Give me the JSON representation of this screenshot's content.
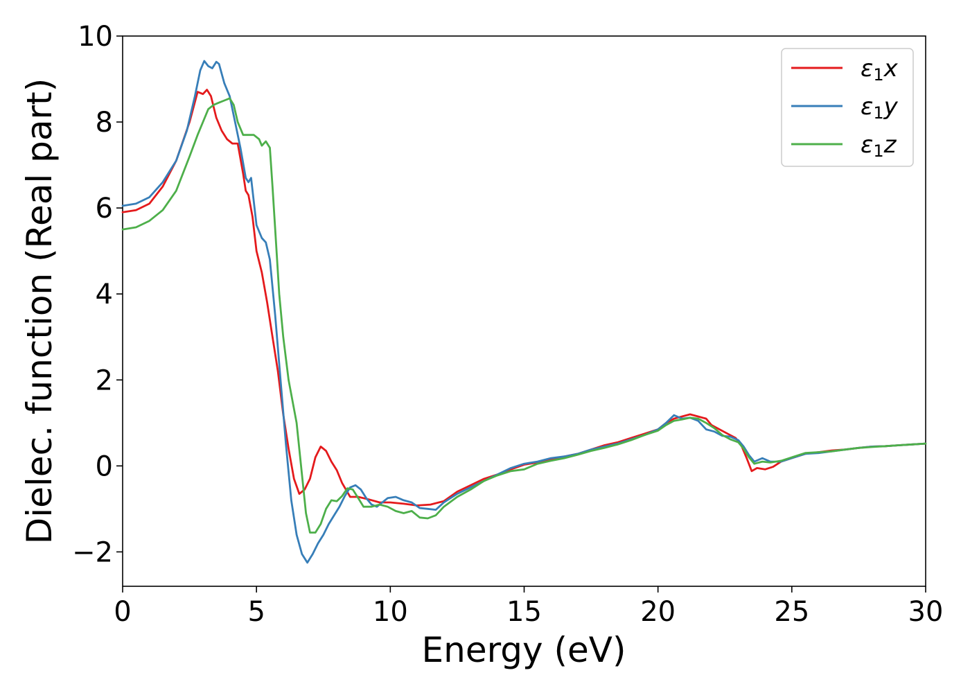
{
  "chart_data": {
    "type": "line",
    "title": "",
    "xlabel": "Energy (eV)",
    "ylabel": "Dielec. function (Real part)",
    "xlim": [
      0,
      30
    ],
    "ylim": [
      -2.8,
      10
    ],
    "xticks": [
      0,
      5,
      10,
      15,
      20,
      25,
      30
    ],
    "yticks": [
      -2,
      0,
      2,
      4,
      6,
      8,
      10
    ],
    "xtick_labels": [
      "0",
      "5",
      "10",
      "15",
      "20",
      "25",
      "30"
    ],
    "ytick_labels": [
      "−2",
      "0",
      "2",
      "4",
      "6",
      "8",
      "10"
    ],
    "grid": false,
    "legend_position": "top-right",
    "series": [
      {
        "name": "ε1x",
        "legend": {
          "base": "ε",
          "sub": "1",
          "suffix": "x"
        },
        "color": "#e41a1c",
        "points": [
          [
            0,
            5.9
          ],
          [
            0.5,
            5.95
          ],
          [
            1,
            6.1
          ],
          [
            1.5,
            6.5
          ],
          [
            2,
            7.1
          ],
          [
            2.5,
            8.0
          ],
          [
            2.8,
            8.7
          ],
          [
            3.0,
            8.65
          ],
          [
            3.15,
            8.75
          ],
          [
            3.3,
            8.6
          ],
          [
            3.5,
            8.1
          ],
          [
            3.7,
            7.8
          ],
          [
            3.9,
            7.6
          ],
          [
            4.1,
            7.5
          ],
          [
            4.3,
            7.5
          ],
          [
            4.5,
            6.8
          ],
          [
            4.6,
            6.4
          ],
          [
            4.7,
            6.3
          ],
          [
            4.85,
            5.8
          ],
          [
            5.0,
            5.0
          ],
          [
            5.2,
            4.5
          ],
          [
            5.4,
            3.8
          ],
          [
            5.6,
            3.0
          ],
          [
            5.8,
            2.2
          ],
          [
            6.0,
            1.2
          ],
          [
            6.2,
            0.4
          ],
          [
            6.4,
            -0.3
          ],
          [
            6.6,
            -0.65
          ],
          [
            6.8,
            -0.55
          ],
          [
            7.0,
            -0.3
          ],
          [
            7.2,
            0.2
          ],
          [
            7.4,
            0.45
          ],
          [
            7.6,
            0.35
          ],
          [
            7.8,
            0.1
          ],
          [
            8.0,
            -0.1
          ],
          [
            8.2,
            -0.4
          ],
          [
            8.5,
            -0.72
          ],
          [
            8.8,
            -0.72
          ],
          [
            9.2,
            -0.78
          ],
          [
            9.6,
            -0.85
          ],
          [
            10,
            -0.85
          ],
          [
            10.5,
            -0.88
          ],
          [
            11,
            -0.92
          ],
          [
            11.5,
            -0.9
          ],
          [
            12,
            -0.82
          ],
          [
            12.5,
            -0.6
          ],
          [
            13,
            -0.45
          ],
          [
            13.5,
            -0.3
          ],
          [
            14,
            -0.2
          ],
          [
            14.5,
            -0.08
          ],
          [
            15,
            0.03
          ],
          [
            15.5,
            0.08
          ],
          [
            16,
            0.15
          ],
          [
            16.5,
            0.22
          ],
          [
            17,
            0.28
          ],
          [
            17.5,
            0.38
          ],
          [
            18,
            0.48
          ],
          [
            18.5,
            0.55
          ],
          [
            19,
            0.65
          ],
          [
            19.5,
            0.75
          ],
          [
            20,
            0.85
          ],
          [
            20.3,
            1.0
          ],
          [
            20.6,
            1.1
          ],
          [
            20.9,
            1.15
          ],
          [
            21.2,
            1.2
          ],
          [
            21.5,
            1.15
          ],
          [
            21.8,
            1.1
          ],
          [
            22.0,
            0.95
          ],
          [
            22.3,
            0.85
          ],
          [
            22.6,
            0.75
          ],
          [
            22.9,
            0.65
          ],
          [
            23.1,
            0.5
          ],
          [
            23.3,
            0.2
          ],
          [
            23.5,
            -0.12
          ],
          [
            23.7,
            -0.05
          ],
          [
            24,
            -0.08
          ],
          [
            24.3,
            -0.02
          ],
          [
            24.6,
            0.1
          ],
          [
            25,
            0.18
          ],
          [
            25.5,
            0.28
          ],
          [
            26,
            0.32
          ],
          [
            26.5,
            0.36
          ],
          [
            27,
            0.38
          ],
          [
            27.5,
            0.42
          ],
          [
            28,
            0.45
          ],
          [
            28.5,
            0.46
          ],
          [
            29,
            0.48
          ],
          [
            29.5,
            0.5
          ],
          [
            30,
            0.52
          ]
        ]
      },
      {
        "name": "ε1y",
        "legend": {
          "base": "ε",
          "sub": "1",
          "suffix": "y"
        },
        "color": "#377eb8",
        "points": [
          [
            0,
            6.05
          ],
          [
            0.5,
            6.1
          ],
          [
            1,
            6.25
          ],
          [
            1.5,
            6.6
          ],
          [
            2,
            7.1
          ],
          [
            2.4,
            7.8
          ],
          [
            2.7,
            8.6
          ],
          [
            2.9,
            9.2
          ],
          [
            3.05,
            9.42
          ],
          [
            3.2,
            9.3
          ],
          [
            3.35,
            9.25
          ],
          [
            3.5,
            9.4
          ],
          [
            3.6,
            9.35
          ],
          [
            3.8,
            8.9
          ],
          [
            4.0,
            8.6
          ],
          [
            4.2,
            8.0
          ],
          [
            4.4,
            7.4
          ],
          [
            4.6,
            6.7
          ],
          [
            4.7,
            6.6
          ],
          [
            4.8,
            6.7
          ],
          [
            5.0,
            5.6
          ],
          [
            5.2,
            5.3
          ],
          [
            5.35,
            5.2
          ],
          [
            5.5,
            4.8
          ],
          [
            5.7,
            3.5
          ],
          [
            5.9,
            2.0
          ],
          [
            6.1,
            0.5
          ],
          [
            6.3,
            -0.8
          ],
          [
            6.5,
            -1.6
          ],
          [
            6.7,
            -2.05
          ],
          [
            6.9,
            -2.25
          ],
          [
            7.1,
            -2.05
          ],
          [
            7.3,
            -1.8
          ],
          [
            7.5,
            -1.6
          ],
          [
            7.7,
            -1.35
          ],
          [
            7.9,
            -1.15
          ],
          [
            8.1,
            -0.95
          ],
          [
            8.3,
            -0.7
          ],
          [
            8.5,
            -0.5
          ],
          [
            8.7,
            -0.45
          ],
          [
            8.9,
            -0.55
          ],
          [
            9.1,
            -0.75
          ],
          [
            9.3,
            -0.9
          ],
          [
            9.5,
            -0.95
          ],
          [
            9.7,
            -0.85
          ],
          [
            9.9,
            -0.75
          ],
          [
            10.2,
            -0.72
          ],
          [
            10.5,
            -0.8
          ],
          [
            10.8,
            -0.85
          ],
          [
            11.1,
            -0.98
          ],
          [
            11.4,
            -1.0
          ],
          [
            11.7,
            -1.02
          ],
          [
            12,
            -0.85
          ],
          [
            12.5,
            -0.65
          ],
          [
            13,
            -0.5
          ],
          [
            13.5,
            -0.35
          ],
          [
            14,
            -0.2
          ],
          [
            14.5,
            -0.05
          ],
          [
            15,
            0.05
          ],
          [
            15.5,
            0.1
          ],
          [
            16,
            0.18
          ],
          [
            16.5,
            0.22
          ],
          [
            17,
            0.28
          ],
          [
            17.5,
            0.38
          ],
          [
            18,
            0.45
          ],
          [
            18.5,
            0.52
          ],
          [
            19,
            0.62
          ],
          [
            19.5,
            0.72
          ],
          [
            20,
            0.85
          ],
          [
            20.3,
            1.0
          ],
          [
            20.6,
            1.18
          ],
          [
            20.9,
            1.1
          ],
          [
            21.2,
            1.12
          ],
          [
            21.5,
            1.05
          ],
          [
            21.8,
            0.85
          ],
          [
            22.1,
            0.8
          ],
          [
            22.4,
            0.7
          ],
          [
            22.7,
            0.68
          ],
          [
            23.0,
            0.6
          ],
          [
            23.2,
            0.45
          ],
          [
            23.4,
            0.25
          ],
          [
            23.6,
            0.1
          ],
          [
            23.9,
            0.18
          ],
          [
            24.2,
            0.1
          ],
          [
            24.6,
            0.1
          ],
          [
            25,
            0.18
          ],
          [
            25.5,
            0.28
          ],
          [
            26,
            0.3
          ],
          [
            26.5,
            0.34
          ],
          [
            27,
            0.38
          ],
          [
            27.5,
            0.42
          ],
          [
            28,
            0.45
          ],
          [
            28.5,
            0.46
          ],
          [
            29,
            0.48
          ],
          [
            29.5,
            0.5
          ],
          [
            30,
            0.52
          ]
        ]
      },
      {
        "name": "ε1z",
        "legend": {
          "base": "ε",
          "sub": "1",
          "suffix": "z"
        },
        "color": "#4daf4a",
        "points": [
          [
            0,
            5.5
          ],
          [
            0.5,
            5.55
          ],
          [
            1,
            5.7
          ],
          [
            1.5,
            5.95
          ],
          [
            2,
            6.4
          ],
          [
            2.5,
            7.2
          ],
          [
            2.8,
            7.7
          ],
          [
            3.0,
            8.0
          ],
          [
            3.2,
            8.3
          ],
          [
            3.4,
            8.4
          ],
          [
            3.6,
            8.45
          ],
          [
            3.8,
            8.5
          ],
          [
            4.0,
            8.55
          ],
          [
            4.15,
            8.4
          ],
          [
            4.3,
            8.0
          ],
          [
            4.5,
            7.7
          ],
          [
            4.7,
            7.7
          ],
          [
            4.9,
            7.7
          ],
          [
            5.1,
            7.6
          ],
          [
            5.2,
            7.45
          ],
          [
            5.35,
            7.55
          ],
          [
            5.5,
            7.4
          ],
          [
            5.6,
            6.5
          ],
          [
            5.7,
            5.5
          ],
          [
            5.85,
            4.0
          ],
          [
            6.0,
            3.0
          ],
          [
            6.2,
            2.0
          ],
          [
            6.5,
            1.0
          ],
          [
            6.7,
            -0.2
          ],
          [
            6.85,
            -1.1
          ],
          [
            7.0,
            -1.55
          ],
          [
            7.2,
            -1.55
          ],
          [
            7.4,
            -1.35
          ],
          [
            7.6,
            -1.0
          ],
          [
            7.8,
            -0.8
          ],
          [
            8.0,
            -0.82
          ],
          [
            8.2,
            -0.7
          ],
          [
            8.4,
            -0.52
          ],
          [
            8.6,
            -0.55
          ],
          [
            8.8,
            -0.75
          ],
          [
            9.0,
            -0.95
          ],
          [
            9.3,
            -0.95
          ],
          [
            9.6,
            -0.9
          ],
          [
            9.9,
            -0.95
          ],
          [
            10.2,
            -1.05
          ],
          [
            10.5,
            -1.1
          ],
          [
            10.8,
            -1.05
          ],
          [
            11.1,
            -1.2
          ],
          [
            11.4,
            -1.22
          ],
          [
            11.7,
            -1.15
          ],
          [
            12,
            -0.95
          ],
          [
            12.5,
            -0.72
          ],
          [
            13,
            -0.55
          ],
          [
            13.5,
            -0.35
          ],
          [
            14,
            -0.22
          ],
          [
            14.5,
            -0.12
          ],
          [
            15,
            -0.08
          ],
          [
            15.5,
            0.05
          ],
          [
            16,
            0.12
          ],
          [
            16.5,
            0.18
          ],
          [
            17,
            0.26
          ],
          [
            17.5,
            0.35
          ],
          [
            18,
            0.42
          ],
          [
            18.5,
            0.5
          ],
          [
            19,
            0.6
          ],
          [
            19.5,
            0.72
          ],
          [
            20,
            0.82
          ],
          [
            20.3,
            0.95
          ],
          [
            20.6,
            1.05
          ],
          [
            20.9,
            1.08
          ],
          [
            21.2,
            1.12
          ],
          [
            21.5,
            1.1
          ],
          [
            21.8,
            1.0
          ],
          [
            22.1,
            0.88
          ],
          [
            22.4,
            0.72
          ],
          [
            22.7,
            0.62
          ],
          [
            23.0,
            0.55
          ],
          [
            23.2,
            0.4
          ],
          [
            23.4,
            0.2
          ],
          [
            23.6,
            0.05
          ],
          [
            23.9,
            0.1
          ],
          [
            24.2,
            0.08
          ],
          [
            24.6,
            0.12
          ],
          [
            25,
            0.2
          ],
          [
            25.5,
            0.3
          ],
          [
            26,
            0.32
          ],
          [
            26.5,
            0.34
          ],
          [
            27,
            0.38
          ],
          [
            27.5,
            0.42
          ],
          [
            28,
            0.44
          ],
          [
            28.5,
            0.46
          ],
          [
            29,
            0.48
          ],
          [
            29.5,
            0.5
          ],
          [
            30,
            0.52
          ]
        ]
      }
    ]
  }
}
